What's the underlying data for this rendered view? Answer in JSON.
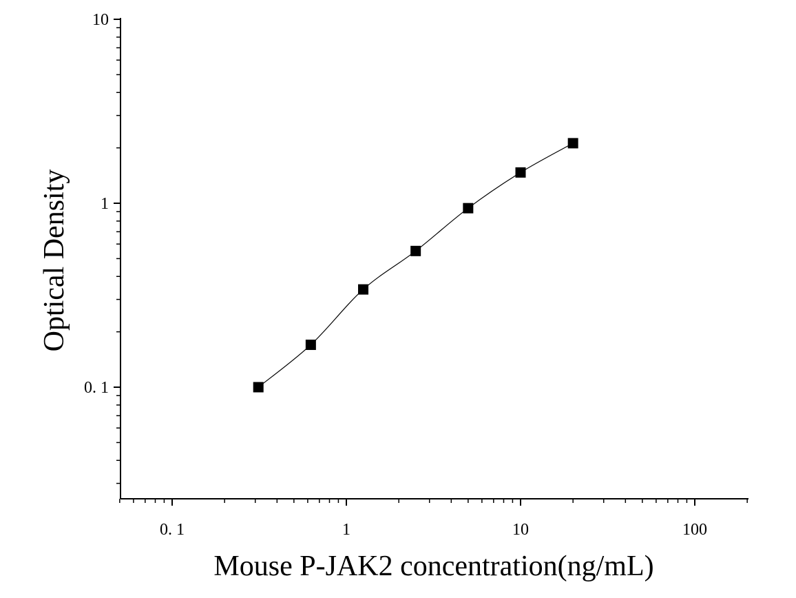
{
  "chart_data": {
    "type": "scatter",
    "title": "",
    "xlabel": "Mouse P-JAK2 concentration(ng/mL)",
    "ylabel": "Optical Density",
    "x_scale": "log",
    "y_scale": "log",
    "xlim": [
      0.05,
      200
    ],
    "ylim": [
      0.025,
      10
    ],
    "x_ticks": [
      {
        "value": 0.1,
        "label": "0. 1"
      },
      {
        "value": 1,
        "label": "1"
      },
      {
        "value": 10,
        "label": "10"
      },
      {
        "value": 100,
        "label": "100"
      }
    ],
    "y_ticks": [
      {
        "value": 0.1,
        "label": "0. 1"
      },
      {
        "value": 1,
        "label": "1"
      },
      {
        "value": 10,
        "label": "10"
      }
    ],
    "grid": false,
    "legend": "none",
    "series": [
      {
        "marker": "square",
        "color": "#000000",
        "fit_line": true,
        "x": [
          0.3125,
          0.625,
          1.25,
          2.5,
          5,
          10,
          20
        ],
        "y": [
          0.1,
          0.17,
          0.34,
          0.55,
          0.94,
          1.47,
          2.12
        ]
      }
    ]
  }
}
